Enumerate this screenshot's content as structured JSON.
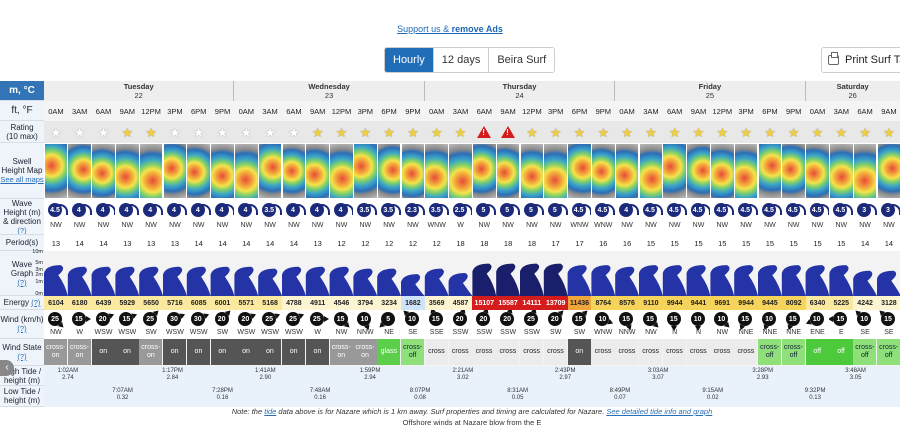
{
  "support": {
    "text": "Support us & ",
    "bold": "remove Ads"
  },
  "view_buttons": [
    {
      "label": "Hourly",
      "active": true
    },
    {
      "label": "12 days",
      "active": false
    },
    {
      "label": "Beira Surf",
      "active": false
    }
  ],
  "print_label": "Print Surf Tab",
  "units": {
    "metric": "m, °C",
    "imperial": "ft, °F"
  },
  "days": [
    {
      "name": "Tuesday",
      "date": "22",
      "span": 8
    },
    {
      "name": "Wednesday",
      "date": "23",
      "span": 8
    },
    {
      "name": "Thursday",
      "date": "24",
      "span": 8
    },
    {
      "name": "Friday",
      "date": "25",
      "span": 8
    },
    {
      "name": "Saturday",
      "date": "26",
      "span": 4
    }
  ],
  "times": [
    "0AM",
    "3AM",
    "6AM",
    "9AM",
    "12PM",
    "3PM",
    "6PM",
    "9PM",
    "0AM",
    "3AM",
    "6AM",
    "9AM",
    "12PM",
    "3PM",
    "6PM",
    "9PM",
    "0AM",
    "3AM",
    "6AM",
    "9AM",
    "12PM",
    "3PM",
    "6PM",
    "9PM",
    "0AM",
    "3AM",
    "6AM",
    "9AM",
    "12PM",
    "3PM",
    "6PM",
    "9PM",
    "0AM",
    "3AM",
    "6AM",
    "9AM"
  ],
  "labels": {
    "rating": "Rating",
    "rating_sub": "(10 max)",
    "swell_map": "Swell Height Map",
    "see_all": "See all maps",
    "wave_height": "Wave Height (m) & direction",
    "help": "(?)",
    "period": "Period(s)",
    "wave_graph": "Wave Graph",
    "energy": "Energy",
    "wind": "Wind (km/h)",
    "wind_state": "Wind State",
    "high_tide": "High Tide / height (m)",
    "low_tide": "Low Tide / height (m)"
  },
  "wave_graph_axis": [
    "10m",
    "5m",
    "3m",
    "2m",
    "1m",
    "0m"
  ],
  "ratings": [
    "0",
    "0",
    "0",
    "1",
    "1",
    "0",
    "0",
    "0",
    "0",
    "0",
    "0",
    "1",
    "1",
    "1",
    "1",
    "1",
    "1",
    "1",
    "!",
    "!",
    "1",
    "1",
    "1",
    "1",
    "1",
    "1",
    "1",
    "1",
    "1",
    "1",
    "1",
    "1",
    "1",
    "1",
    "1",
    "1"
  ],
  "wave_heights": [
    "4.5",
    "4",
    "4",
    "4",
    "4",
    "4",
    "4",
    "4",
    "4",
    "3.5",
    "4",
    "4",
    "4",
    "3.5",
    "3.5",
    "2.3",
    "3.5",
    "2.5",
    "5",
    "5",
    "5",
    "5",
    "4.5",
    "4.5",
    "4",
    "4.5",
    "4.5",
    "4.5",
    "4.5",
    "4.5",
    "4.5",
    "4.5",
    "4.5",
    "4.5",
    "3",
    "3"
  ],
  "wave_dirs": [
    "NW",
    "NW",
    "NW",
    "NW",
    "NW",
    "NW",
    "NW",
    "NW",
    "NW",
    "NW",
    "NW",
    "NW",
    "NW",
    "NW",
    "NW",
    "NW",
    "WNW",
    "W",
    "NW",
    "NW",
    "NW",
    "NW",
    "WNW",
    "WNW",
    "NW",
    "NW",
    "NW",
    "NW",
    "NW",
    "NW",
    "NW",
    "NW",
    "NW",
    "NW",
    "NW",
    "NW"
  ],
  "periods": [
    "13",
    "14",
    "14",
    "13",
    "13",
    "13",
    "14",
    "14",
    "14",
    "14",
    "14",
    "13",
    "12",
    "12",
    "12",
    "12",
    "12",
    "18",
    "18",
    "18",
    "18",
    "17",
    "17",
    "16",
    "16",
    "15",
    "15",
    "15",
    "15",
    "15",
    "15",
    "15",
    "15",
    "15",
    "14",
    "14"
  ],
  "wave_graph_heights": [
    4.5,
    4,
    4,
    4,
    4,
    4,
    4,
    4,
    4,
    3.5,
    4,
    4,
    4,
    3.5,
    3.5,
    2.3,
    3.5,
    2.5,
    5,
    5,
    5,
    5,
    4.5,
    4.5,
    4,
    4.5,
    4.5,
    4.5,
    4.5,
    4.5,
    4.5,
    4.5,
    4.5,
    4.5,
    3,
    3
  ],
  "energy": [
    "6104",
    "6180",
    "6439",
    "5929",
    "5650",
    "5716",
    "6085",
    "6001",
    "5571",
    "5168",
    "4788",
    "4911",
    "4546",
    "3794",
    "3234",
    "1682",
    "3569",
    "4587",
    "15107",
    "15587",
    "14111",
    "13709",
    "11436",
    "8764",
    "8576",
    "9110",
    "9944",
    "9441",
    "9691",
    "9944",
    "9445",
    "8092",
    "6340",
    "5225",
    "4242",
    "3128"
  ],
  "wind_speeds": [
    "25",
    "15",
    "20",
    "15",
    "25",
    "30",
    "30",
    "20",
    "20",
    "25",
    "25",
    "25",
    "15",
    "10",
    "5",
    "10",
    "15",
    "20",
    "20",
    "20",
    "25",
    "20",
    "15",
    "10",
    "15",
    "15",
    "15",
    "10",
    "10",
    "15",
    "10",
    "15",
    "10",
    "15",
    "10",
    "15"
  ],
  "wind_dirs": [
    "NW",
    "W",
    "WSW",
    "WSW",
    "SW",
    "WSW",
    "WSW",
    "SW",
    "WSW",
    "WSW",
    "WSW",
    "W",
    "NW",
    "NNW",
    "NE",
    "SE",
    "SSE",
    "SSW",
    "SSW",
    "SSW",
    "SSW",
    "SW",
    "SW",
    "WNW",
    "NNW",
    "NW",
    "N",
    "N",
    "NW",
    "NNE",
    "NNE",
    "NNE",
    "ENE",
    "E",
    "SE",
    "SE"
  ],
  "wind_states": [
    "cross-on",
    "cross-on",
    "on",
    "on",
    "cross-on",
    "on",
    "on",
    "on",
    "on",
    "on",
    "on",
    "on",
    "cross-on",
    "cross-on",
    "glass",
    "cross-off",
    "cross",
    "cross",
    "cross",
    "cross",
    "cross",
    "cross",
    "on",
    "cross",
    "cross",
    "cross",
    "cross",
    "cross",
    "cross",
    "cross",
    "cross-off",
    "cross-off",
    "off",
    "off",
    "cross-off",
    "cross-off"
  ],
  "high_tides": [
    {
      "idx": 1.0,
      "time": "1:02AM",
      "h": "2.74"
    },
    {
      "idx": 5.4,
      "time": "1:17PM",
      "h": "2.84"
    },
    {
      "idx": 9.3,
      "time": "1:41AM",
      "h": "2.90"
    },
    {
      "idx": 13.7,
      "time": "1:59PM",
      "h": "2.94"
    },
    {
      "idx": 17.6,
      "time": "2:21AM",
      "h": "3.02"
    },
    {
      "idx": 21.9,
      "time": "2:43PM",
      "h": "2.97"
    },
    {
      "idx": 25.8,
      "time": "3:03AM",
      "h": "3.07"
    },
    {
      "idx": 30.2,
      "time": "3:28PM",
      "h": "2.93"
    },
    {
      "idx": 34.1,
      "time": "3:48AM",
      "h": "3.05"
    }
  ],
  "low_tides": [
    {
      "idx": 3.3,
      "time": "7:07AM",
      "h": "0.32"
    },
    {
      "idx": 7.5,
      "time": "7:28PM",
      "h": "0.16"
    },
    {
      "idx": 11.6,
      "time": "7:48AM",
      "h": "0.16"
    },
    {
      "idx": 15.8,
      "time": "8:07PM",
      "h": "0.08"
    },
    {
      "idx": 19.9,
      "time": "8:31AM",
      "h": "0.05"
    },
    {
      "idx": 24.2,
      "time": "8:49PM",
      "h": "0.07"
    },
    {
      "idx": 28.1,
      "time": "9:15AM",
      "h": "0.02"
    },
    {
      "idx": 32.4,
      "time": "9:32PM",
      "h": "0.13"
    }
  ],
  "note": {
    "pre": "Note: the ",
    "link1": "tide",
    "mid": " data above is for Nazare which is 1 km away. Surf properties and timing are calculated for Nazare. ",
    "link2": "See detailed tide info and graph",
    "line2": "Offshore winds at Nazare blow from the E"
  },
  "colors": {
    "accent": "#1f6eb7",
    "unit_bg": "#3274b5",
    "wave_dark": "#1b2a7a",
    "energy_high": "#d41c1c",
    "star": "#f2cf3a"
  }
}
